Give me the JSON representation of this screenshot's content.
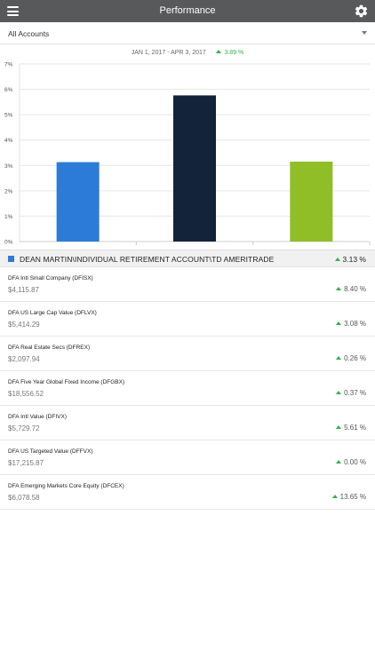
{
  "header": {
    "title": "Performance",
    "menu_icon": "hamburger-menu-icon",
    "settings_icon": "gear-icon"
  },
  "account_selector": {
    "value": "All Accounts"
  },
  "period": {
    "range": "JAN 1, 2017 - APR 3, 2017",
    "change": "3.89 %"
  },
  "colors": {
    "header_bg": "#58595b",
    "positive": "#2db34a",
    "account_square": "#2c7bd6"
  },
  "chart_data": {
    "type": "bar",
    "y_ticks": [
      "0%",
      "1%",
      "2%",
      "3%",
      "4%",
      "5%",
      "6%",
      "7%"
    ],
    "ylim": [
      0,
      7
    ],
    "values": [
      3.13,
      5.76,
      3.15
    ],
    "colors": [
      "#2c7bd6",
      "#12233a",
      "#8fbe27"
    ],
    "grid": true
  },
  "account": {
    "name": "DEAN MARTIN\\INDIVIDUAL RETIREMENT ACCOUNT\\TD AMERITRADE",
    "return": "3.13 %"
  },
  "holdings": [
    {
      "name": "DFA Intl Small Company (DFISX)",
      "value": "$4,115.87",
      "return": "8.40 %"
    },
    {
      "name": "DFA US Large Cap Value (DFLVX)",
      "value": "$5,414.29",
      "return": "3.08 %"
    },
    {
      "name": "DFA Real Estate Secs (DFREX)",
      "value": "$2,097.94",
      "return": "0.26 %"
    },
    {
      "name": "DFA Five Year Global Fixed Income (DFGBX)",
      "value": "$18,556.52",
      "return": "0.37 %"
    },
    {
      "name": "DFA Intl Value (DFIVX)",
      "value": "$5,729.72",
      "return": "5.61 %"
    },
    {
      "name": "DFA US Targeted Value (DFFVX)",
      "value": "$17,215.87",
      "return": "0.00 %"
    },
    {
      "name": "DFA Emerging Markets Core Equity (DFCEX)",
      "value": "$6,078.58",
      "return": "13.65 %"
    }
  ]
}
